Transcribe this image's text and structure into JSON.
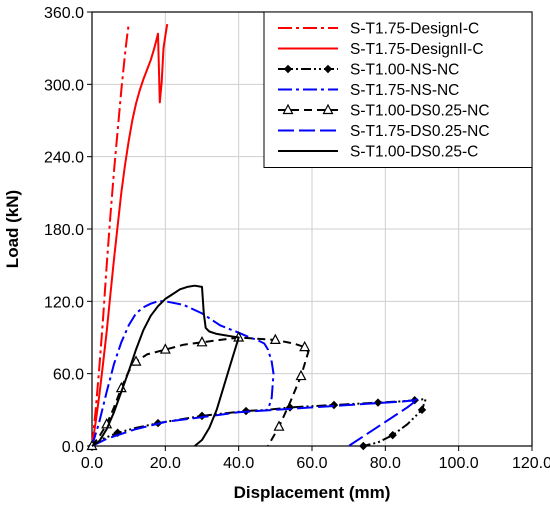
{
  "chart_data": {
    "type": "line",
    "xlabel": "Displacement (mm)",
    "ylabel": "Load (kN)",
    "xlim": [
      0,
      120
    ],
    "ylim": [
      0,
      360
    ],
    "x_ticks": [
      0,
      20,
      40,
      60,
      80,
      100,
      120
    ],
    "y_ticks": [
      0,
      60,
      120,
      180,
      240,
      300,
      360
    ],
    "x_tick_labels": [
      "0.0",
      "20.0",
      "40.0",
      "60.0",
      "80.0",
      "100.0",
      "120.0"
    ],
    "y_tick_labels": [
      "0.0",
      "60.0",
      "120.0",
      "180.0",
      "240.0",
      "300.0",
      "360.0"
    ],
    "grid": true,
    "legend_position": "top-right",
    "series": [
      {
        "name": "S-T1.75-DesignI-C",
        "color": "#ff0000",
        "dash": "dashdot",
        "marker": "none",
        "x": [
          0,
          1,
          2,
          3,
          4,
          5,
          6,
          7,
          8,
          9,
          9.5,
          10
        ],
        "y": [
          0,
          30,
          65,
          105,
          150,
          190,
          228,
          262,
          295,
          325,
          338,
          350
        ]
      },
      {
        "name": "S-T1.75-DesignII-C",
        "color": "#ff0000",
        "dash": "solid",
        "marker": "none",
        "x": [
          0,
          1,
          2,
          3,
          4,
          5,
          6,
          7,
          8,
          9,
          10,
          11,
          12,
          13,
          14,
          15,
          16,
          17,
          18,
          18.5,
          19,
          19.5,
          20,
          20.5
        ],
        "y": [
          0,
          20,
          42,
          68,
          95,
          125,
          155,
          183,
          210,
          233,
          253,
          270,
          284,
          295,
          304,
          312,
          320,
          330,
          342,
          285,
          302,
          330,
          340,
          350
        ]
      },
      {
        "name": "S-T1.00-NS-NC",
        "color": "#000000",
        "dash": "dashdotdot",
        "marker": "diamond",
        "x": [
          0,
          3,
          7,
          12,
          18,
          24,
          30,
          36,
          42,
          48,
          54,
          60,
          66,
          72,
          78,
          84,
          88,
          91,
          90,
          86,
          82,
          78,
          74
        ],
        "y": [
          0,
          6,
          11,
          15,
          19,
          22,
          25,
          27,
          29,
          30,
          32,
          33,
          34,
          35,
          36,
          37,
          38,
          39,
          30,
          18,
          9,
          3,
          0
        ]
      },
      {
        "name": "S-T1.75-NS-NC",
        "color": "#0000ff",
        "dash": "dashdot",
        "marker": "none",
        "x": [
          0,
          2,
          4,
          6,
          8,
          10,
          12,
          14,
          16,
          18,
          20,
          25,
          30,
          35,
          40,
          43,
          45,
          47,
          48,
          49,
          49.5,
          49,
          48
        ],
        "y": [
          0,
          20,
          45,
          68,
          86,
          100,
          110,
          115,
          118,
          120,
          120,
          117,
          110,
          100,
          94,
          90,
          88,
          85,
          80,
          70,
          60,
          40,
          30
        ]
      },
      {
        "name": "S-T1.00-DS0.25-NC",
        "color": "#000000",
        "dash": "dashed",
        "marker": "triangle",
        "x": [
          0,
          2,
          4,
          6,
          8,
          10,
          12,
          15,
          20,
          25,
          30,
          35,
          40,
          45,
          50,
          55,
          58,
          59,
          57,
          54,
          51,
          48
        ],
        "y": [
          0,
          8,
          18,
          32,
          48,
          62,
          70,
          76,
          80,
          84,
          86,
          88,
          90,
          89,
          88,
          85,
          82,
          78,
          58,
          36,
          16,
          0
        ]
      },
      {
        "name": "S-T1.75-DS0.25-NC",
        "color": "#0000ff",
        "dash": "longdash",
        "marker": "none",
        "x": [
          0,
          4,
          8,
          12,
          16,
          20,
          25,
          30,
          35,
          40,
          45,
          50,
          55,
          60,
          65,
          70,
          75,
          80,
          85,
          88,
          89,
          86,
          80,
          75,
          70
        ],
        "y": [
          0,
          6,
          10,
          14,
          17,
          20,
          22,
          24,
          26,
          28,
          29,
          30,
          31,
          32,
          33,
          34,
          35,
          36,
          37,
          38,
          39,
          32,
          20,
          10,
          0
        ]
      },
      {
        "name": "S-T1.00-DS0.25-C",
        "color": "#000000",
        "dash": "solid",
        "marker": "none",
        "x": [
          0,
          2,
          4,
          6,
          8,
          10,
          12,
          14,
          16,
          18,
          20,
          22,
          24,
          26,
          28,
          30,
          30.5,
          31,
          32,
          34,
          36,
          38,
          40,
          38,
          36,
          34,
          32,
          30,
          28
        ],
        "y": [
          0,
          4,
          14,
          28,
          45,
          62,
          80,
          96,
          108,
          116,
          122,
          126,
          130,
          132,
          133,
          132,
          110,
          98,
          95,
          93,
          92,
          91,
          90,
          70,
          50,
          30,
          15,
          5,
          0
        ]
      }
    ]
  }
}
